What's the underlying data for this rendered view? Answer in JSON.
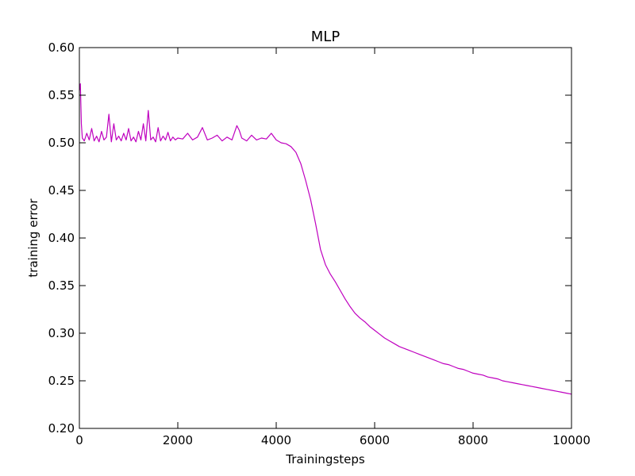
{
  "chart_data": {
    "type": "line",
    "title": "MLP",
    "xlabel": "Trainingsteps",
    "ylabel": "training error",
    "xlim": [
      0,
      10000
    ],
    "ylim": [
      0.2,
      0.6
    ],
    "xticks": [
      0,
      2000,
      4000,
      6000,
      8000,
      10000
    ],
    "xtick_labels": [
      "0",
      "2000",
      "4000",
      "6000",
      "8000",
      "10000"
    ],
    "yticks": [
      0.2,
      0.25,
      0.3,
      0.35,
      0.4,
      0.45,
      0.5,
      0.55,
      0.6
    ],
    "ytick_labels": [
      "0.20",
      "0.25",
      "0.30",
      "0.35",
      "0.40",
      "0.45",
      "0.50",
      "0.55",
      "0.60"
    ],
    "grid": false,
    "series_color": "#bf00bf",
    "series": [
      {
        "x": [
          0,
          20,
          40,
          60,
          100,
          150,
          200,
          250,
          300,
          350,
          400,
          450,
          500,
          550,
          600,
          650,
          700,
          750,
          800,
          850,
          900,
          950,
          1000,
          1050,
          1100,
          1150,
          1200,
          1250,
          1300,
          1350,
          1400,
          1450,
          1500,
          1550,
          1600,
          1650,
          1700,
          1750,
          1800,
          1850,
          1900,
          1950,
          2000,
          2100,
          2200,
          2300,
          2400,
          2500,
          2600,
          2700,
          2800,
          2900,
          3000,
          3100,
          3200,
          3250,
          3300,
          3400,
          3500,
          3600,
          3700,
          3800,
          3900,
          4000,
          4100,
          4200,
          4300,
          4400,
          4500,
          4600,
          4700,
          4800,
          4900,
          5000,
          5100,
          5200,
          5300,
          5400,
          5500,
          5600,
          5700,
          5800,
          5900,
          6000,
          6100,
          6200,
          6300,
          6400,
          6500,
          6600,
          6700,
          6800,
          6900,
          7000,
          7100,
          7200,
          7300,
          7400,
          7500,
          7600,
          7700,
          7800,
          7900,
          8000,
          8100,
          8200,
          8300,
          8400,
          8500,
          8600,
          8700,
          8800,
          8900,
          9000,
          9100,
          9200,
          9300,
          9400,
          9500,
          9600,
          9700,
          9800,
          9900,
          10000
        ],
        "y": [
          0.555,
          0.562,
          0.52,
          0.505,
          0.502,
          0.51,
          0.503,
          0.515,
          0.502,
          0.507,
          0.501,
          0.512,
          0.503,
          0.506,
          0.53,
          0.501,
          0.52,
          0.503,
          0.507,
          0.502,
          0.51,
          0.503,
          0.515,
          0.502,
          0.506,
          0.501,
          0.512,
          0.503,
          0.52,
          0.502,
          0.534,
          0.503,
          0.506,
          0.501,
          0.516,
          0.502,
          0.507,
          0.503,
          0.511,
          0.502,
          0.506,
          0.503,
          0.505,
          0.504,
          0.51,
          0.503,
          0.506,
          0.516,
          0.503,
          0.505,
          0.508,
          0.502,
          0.506,
          0.503,
          0.518,
          0.513,
          0.505,
          0.502,
          0.508,
          0.503,
          0.505,
          0.504,
          0.51,
          0.503,
          0.5,
          0.499,
          0.496,
          0.49,
          0.478,
          0.46,
          0.44,
          0.415,
          0.388,
          0.372,
          0.362,
          0.354,
          0.345,
          0.336,
          0.328,
          0.321,
          0.316,
          0.312,
          0.307,
          0.303,
          0.299,
          0.295,
          0.292,
          0.289,
          0.286,
          0.284,
          0.282,
          0.28,
          0.278,
          0.276,
          0.274,
          0.272,
          0.27,
          0.268,
          0.267,
          0.265,
          0.263,
          0.262,
          0.26,
          0.258,
          0.257,
          0.256,
          0.254,
          0.253,
          0.252,
          0.25,
          0.249,
          0.248,
          0.247,
          0.246,
          0.245,
          0.244,
          0.243,
          0.242,
          0.241,
          0.24,
          0.239,
          0.238,
          0.237,
          0.236
        ]
      }
    ]
  }
}
